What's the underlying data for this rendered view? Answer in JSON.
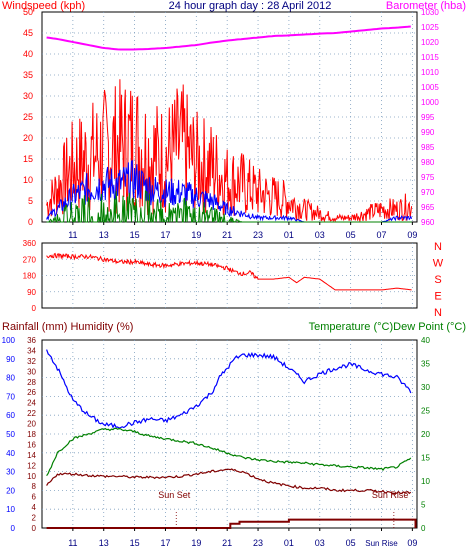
{
  "chart_data": [
    {
      "type": "line",
      "title": "24 hour graph day : 28 April 2012",
      "ylabel": "Windspeed (kph)",
      "y2label": "Barometer (hba)",
      "x_tick_labels": [
        "11",
        "13",
        "15",
        "17",
        "19",
        "21",
        "23",
        "01",
        "03",
        "05",
        "07",
        "09"
      ],
      "x_range_hours": [
        9,
        33.3
      ],
      "ylim": [
        0,
        50
      ],
      "y_ticks": [
        0,
        5,
        10,
        15,
        20,
        25,
        30,
        35,
        40,
        45,
        50
      ],
      "y2lim": [
        960,
        1030
      ],
      "y2_ticks": [
        960,
        965,
        970,
        975,
        980,
        985,
        990,
        995,
        1000,
        1005,
        1010,
        1015,
        1020,
        1025,
        1030
      ],
      "grid": true,
      "series": [
        {
          "name": "Barometer",
          "axis": "right",
          "color": "#ff00ff",
          "x": [
            9.3,
            10,
            11,
            12,
            13,
            14,
            15,
            16,
            17,
            18,
            19,
            20,
            21,
            22,
            23,
            24,
            25,
            26,
            27,
            28,
            29,
            30,
            31,
            32,
            33
          ],
          "values": [
            1021.5,
            1021,
            1020,
            1019,
            1018,
            1017.5,
            1017.5,
            1017.7,
            1018,
            1018.5,
            1019,
            1019.8,
            1020.5,
            1021,
            1021.5,
            1022,
            1022.2,
            1022.5,
            1022.8,
            1023,
            1023.5,
            1024,
            1024.5,
            1024.8,
            1025.2
          ]
        },
        {
          "name": "Gust",
          "axis": "left",
          "color": "#ff0000",
          "x": [
            9.3,
            10,
            11,
            12,
            13,
            14,
            15,
            16,
            17,
            18,
            19,
            20,
            21,
            22,
            23,
            24,
            25,
            26,
            27,
            28,
            29,
            30,
            31,
            32,
            33
          ],
          "values": [
            4,
            8,
            13,
            15,
            17,
            18,
            19,
            16,
            15,
            18,
            14,
            13,
            10,
            9,
            7,
            6,
            5,
            3,
            2,
            1,
            1,
            2,
            3,
            3,
            4
          ]
        },
        {
          "name": "Average",
          "axis": "left",
          "color": "#0000ff",
          "x": [
            9.3,
            10,
            11,
            12,
            13,
            14,
            15,
            16,
            17,
            18,
            19,
            20,
            21,
            22,
            23,
            24,
            25,
            26,
            27,
            28,
            29,
            30,
            31,
            32,
            33
          ],
          "values": [
            1,
            3,
            6,
            8,
            9,
            9,
            10,
            8,
            7,
            7,
            6,
            5,
            3,
            2,
            1,
            1,
            1,
            0,
            0,
            0,
            0,
            0,
            0,
            1,
            1
          ]
        },
        {
          "name": "Wind Run",
          "axis": "left",
          "color": "#008000",
          "x": [
            9.3,
            10,
            11,
            12,
            13,
            14,
            15,
            16,
            17,
            18,
            19,
            20,
            21,
            22,
            23,
            24,
            25,
            26,
            27,
            28,
            29,
            30,
            31,
            32,
            33
          ],
          "values": [
            0,
            1,
            3,
            4,
            4,
            4,
            4,
            4,
            3,
            3,
            3,
            2,
            1,
            0,
            0,
            0,
            0,
            0,
            0,
            0,
            0,
            0,
            0,
            0,
            0
          ]
        }
      ]
    },
    {
      "type": "line",
      "ylim": [
        0,
        360
      ],
      "y_ticks": [
        0,
        90,
        180,
        270,
        360
      ],
      "right_labels": [
        "N",
        "W",
        "S",
        "E",
        "N"
      ],
      "grid": true,
      "series": [
        {
          "name": "Wind Direction",
          "color": "#ff0000",
          "x": [
            9.3,
            10,
            11,
            12,
            13,
            14,
            15,
            16,
            17,
            18,
            19,
            20,
            21,
            21.5,
            22,
            22.5,
            23,
            24,
            25,
            25.5,
            26,
            27,
            28,
            29,
            30,
            31,
            32,
            33
          ],
          "values": [
            290,
            290,
            285,
            285,
            270,
            255,
            255,
            240,
            235,
            245,
            250,
            240,
            220,
            200,
            190,
            195,
            160,
            160,
            170,
            140,
            170,
            160,
            100,
            100,
            100,
            100,
            110,
            100
          ]
        }
      ]
    },
    {
      "type": "line",
      "ylabel": "Rainfall (mm)  Humidity (%)",
      "y2label": "Temperature (°C)Dew Point (°C)",
      "x_tick_labels": [
        "11",
        "13",
        "15",
        "17",
        "19",
        "21",
        "23",
        "01",
        "03",
        "05",
        "Sun Rise",
        "09"
      ],
      "x_range_hours": [
        9,
        33.3
      ],
      "y_humidity_lim": [
        0,
        100
      ],
      "y_humidity_ticks": [
        0,
        10,
        20,
        30,
        40,
        50,
        60,
        70,
        80,
        90,
        100
      ],
      "y_rain_lim": [
        0,
        36
      ],
      "y_rain_ticks": [
        0,
        2,
        4,
        6,
        8,
        10,
        12,
        14,
        16,
        18,
        20,
        22,
        24,
        26,
        28,
        30,
        32,
        34,
        36
      ],
      "y2lim": [
        0,
        40
      ],
      "y2_ticks": [
        0,
        5,
        10,
        15,
        20,
        25,
        30,
        35,
        40
      ],
      "grid": true,
      "annotations": [
        {
          "text": "Sun Set",
          "x": 17.7
        },
        {
          "text": "Sun Rise",
          "x": 31.8
        }
      ],
      "series": [
        {
          "name": "Humidity",
          "axis": "humidity",
          "color": "#0000ff",
          "x": [
            9.3,
            10,
            11,
            12,
            13,
            14,
            15,
            16,
            17,
            18,
            19,
            20,
            20.5,
            21,
            21.5,
            22,
            23,
            24,
            25,
            26,
            27,
            28,
            29,
            30,
            31,
            32,
            33
          ],
          "values": [
            95,
            85,
            68,
            60,
            55,
            54,
            56,
            58,
            57,
            60,
            65,
            72,
            80,
            85,
            90,
            92,
            92,
            91,
            85,
            78,
            82,
            85,
            87,
            84,
            82,
            80,
            72
          ]
        },
        {
          "name": "Temperature",
          "axis": "right",
          "color": "#008000",
          "x": [
            9.3,
            10,
            11,
            12,
            13,
            14,
            15,
            16,
            17,
            18,
            19,
            20,
            21,
            22,
            23,
            24,
            25,
            26,
            27,
            28,
            29,
            30,
            31,
            32,
            33
          ],
          "values": [
            11,
            16,
            19,
            20,
            21,
            21,
            20.5,
            19.5,
            19,
            18.5,
            18,
            17,
            16,
            15,
            14.5,
            14.2,
            14,
            13.8,
            13.5,
            13.2,
            13,
            12.8,
            12.5,
            13,
            15
          ]
        },
        {
          "name": "Dew Point",
          "axis": "right",
          "color": "#800000",
          "x": [
            9.3,
            10,
            11,
            12,
            13,
            14,
            15,
            16,
            17,
            18,
            19,
            20,
            21,
            22,
            23,
            24,
            25,
            26,
            27,
            28,
            29,
            30,
            31,
            32,
            33
          ],
          "values": [
            9,
            11.5,
            11.5,
            11.2,
            11,
            11,
            10.8,
            10.8,
            10.8,
            11,
            11.5,
            12,
            12.5,
            12,
            10.5,
            9.5,
            9,
            8.5,
            8.5,
            8,
            8,
            8,
            7.8,
            7.5,
            7.5
          ]
        },
        {
          "name": "Rainfall",
          "axis": "rain",
          "color": "#800000",
          "x": [
            9.3,
            20.5,
            21.2,
            21.8,
            23,
            24,
            25,
            26,
            27,
            28,
            29,
            30,
            31,
            32,
            33,
            33.2
          ],
          "values": [
            0,
            0,
            0.8,
            1.2,
            1.2,
            1.2,
            1.6,
            1.6,
            1.6,
            1.6,
            1.6,
            1.6,
            1.6,
            1.6,
            1.6,
            0
          ]
        }
      ]
    }
  ]
}
